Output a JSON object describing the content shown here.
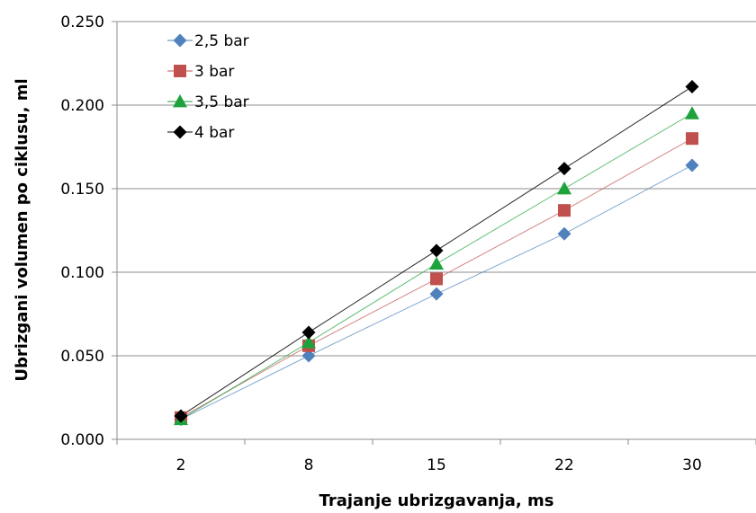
{
  "chart_data": {
    "type": "line",
    "title": "",
    "xlabel": "Trajanje ubrizgavanja, ms",
    "ylabel": "Ubrizgani volumen po ciklusu, ml",
    "categories": [
      "2",
      "8",
      "15",
      "22",
      "30"
    ],
    "ylim": [
      0,
      0.25
    ],
    "yticks": [
      "0.000",
      "0.050",
      "0.100",
      "0.150",
      "0.200",
      "0.250"
    ],
    "grid": "horizontal",
    "legend_position": "top-left",
    "series": [
      {
        "name": "2,5 bar",
        "marker": "diamond",
        "color": "#4F81BD",
        "values": [
          0.012,
          0.05,
          0.087,
          0.123,
          0.164
        ]
      },
      {
        "name": "3 bar",
        "marker": "square",
        "color": "#C0504D",
        "values": [
          0.013,
          0.056,
          0.096,
          0.137,
          0.18
        ]
      },
      {
        "name": "3,5 bar",
        "marker": "triangle",
        "color": "#1EA33C",
        "values": [
          0.012,
          0.058,
          0.105,
          0.15,
          0.195
        ]
      },
      {
        "name": "4 bar",
        "marker": "diamond",
        "color": "#000000",
        "values": [
          0.014,
          0.064,
          0.113,
          0.162,
          0.211
        ]
      }
    ]
  }
}
